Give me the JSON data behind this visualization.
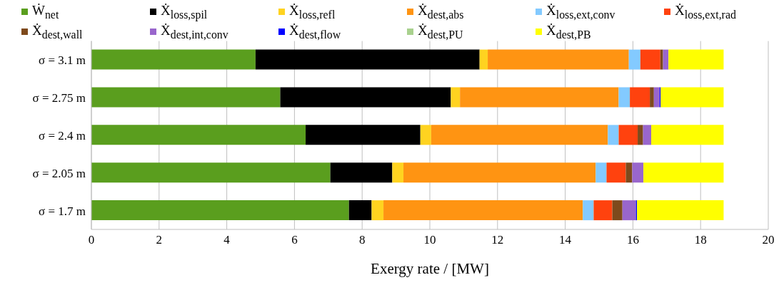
{
  "chart_data": {
    "type": "bar",
    "orientation": "horizontal",
    "stacked": true,
    "xlabel": "Exergy rate / [MW]",
    "categories": [
      "σ = 3.1 m",
      "σ = 2.75 m",
      "σ = 2.4 m",
      "σ = 2.05 m",
      "σ = 1.7 m"
    ],
    "series": [
      {
        "name": "Ẇ$_{net}$",
        "color": "#5a9e1e",
        "values": [
          4.85,
          5.58,
          6.33,
          7.06,
          7.61
        ]
      },
      {
        "name": "Ẋ$_{loss,spil}$",
        "color": "#000000",
        "values": [
          6.62,
          5.04,
          3.39,
          1.83,
          0.67
        ]
      },
      {
        "name": "Ẋ$_{loss,refl}$",
        "color": "#ffd320",
        "values": [
          0.24,
          0.27,
          0.32,
          0.33,
          0.35
        ]
      },
      {
        "name": "Ẋ$_{dest,abs}$",
        "color": "#ff9412",
        "values": [
          4.17,
          4.69,
          5.22,
          5.68,
          5.89
        ]
      },
      {
        "name": "Ẋ$_{loss,ext,conv}$",
        "color": "#83caff",
        "values": [
          0.34,
          0.33,
          0.32,
          0.32,
          0.32
        ]
      },
      {
        "name": "Ẋ$_{loss,ext,rad}$",
        "color": "#ff420e",
        "values": [
          0.59,
          0.59,
          0.56,
          0.57,
          0.55
        ]
      },
      {
        "name": "Ẋ$_{dest,wall}$",
        "color": "#7e4a1c",
        "values": [
          0.08,
          0.12,
          0.16,
          0.19,
          0.3
        ]
      },
      {
        "name": "Ẋ$_{dest,int,conv}$",
        "color": "#9966cc",
        "values": [
          0.16,
          0.17,
          0.24,
          0.33,
          0.4
        ]
      },
      {
        "name": "Ẋ$_{dest,flow}$",
        "color": "#0000ff",
        "values": [
          0,
          0.03,
          0,
          0,
          0.03
        ]
      },
      {
        "name": "Ẋ$_{dest,PU}$",
        "color": "#a9d18e",
        "values": [
          0,
          0,
          0,
          0,
          0
        ]
      },
      {
        "name": "Ẋ$_{dest,PB}$",
        "color": "#ffff00",
        "values": [
          1.63,
          1.86,
          2.14,
          2.37,
          2.56
        ]
      }
    ],
    "xlim": [
      0,
      20
    ],
    "xticks": [
      0,
      2,
      4,
      6,
      8,
      10,
      12,
      14,
      16,
      18,
      20
    ],
    "grid": "x",
    "legend": "top"
  }
}
